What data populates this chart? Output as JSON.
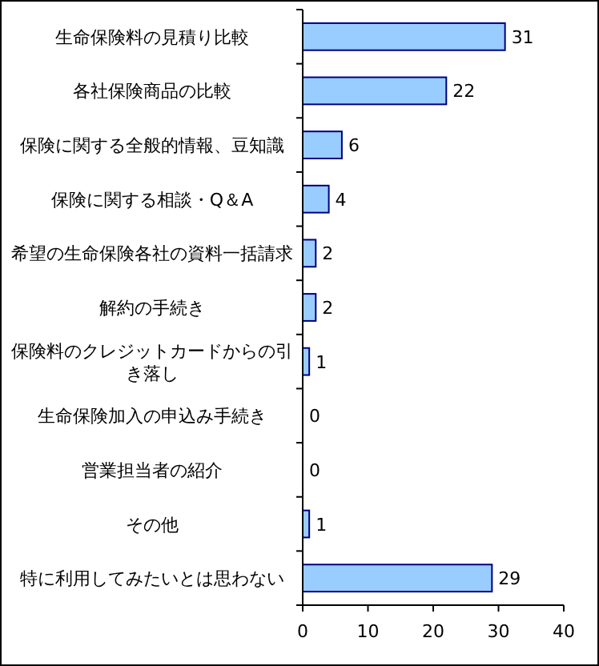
{
  "chart_data": {
    "type": "bar",
    "orientation": "horizontal",
    "categories": [
      "生命保険料の見積り比較",
      "各社保険商品の比較",
      "保険に関する全般的情報、豆知識",
      "保険に関する相談・Q＆A",
      "希望の生命保険各社の資料一括請求",
      "解約の手続き",
      "保険料のクレジットカードからの引き落し",
      "生命保険加入の申込み手続き",
      "営業担当者の紹介",
      "その他",
      "特に利用してみたいとは思わない"
    ],
    "values": [
      31,
      22,
      6,
      4,
      2,
      2,
      1,
      0,
      0,
      1,
      29
    ],
    "color": "#99ccff",
    "xlim": [
      0,
      40
    ],
    "xticks": [
      0,
      10,
      20,
      30,
      40
    ],
    "data_labels": true,
    "grid": false
  }
}
